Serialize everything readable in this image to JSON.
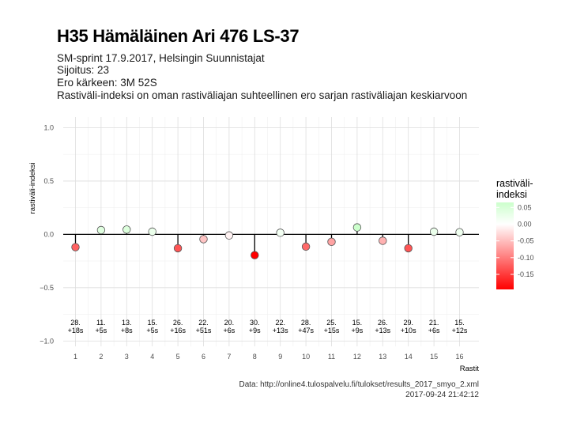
{
  "header": {
    "title": "H35 Hämäläinen Ari 476 LS-37",
    "subtitle_lines": [
      "SM-sprint 17.9.2017, Helsingin Suunnistajat",
      "Sijoitus: 23",
      "Ero kärkeen: 3M 52S",
      "Rastiväli-indeksi on oman rastiväliajan suhteellinen ero sarjan rastiväliajan keskiarvoon"
    ]
  },
  "caption": {
    "source": "Data: http://online4.tulospalvelu.fi/tulokset/results_2017_smyo_2.xml",
    "timestamp": "2017-09-24 21:42:12"
  },
  "chart_data": {
    "type": "scatter",
    "xlabel": "Rastit",
    "ylabel": "rastiväli-indeksi",
    "ylim": [
      -1.05,
      1.1
    ],
    "y_ticks": [
      -1.0,
      -0.5,
      0.0,
      0.5,
      1.0
    ],
    "y_tick_labels": [
      "−1.0",
      "−0.5",
      "0.0",
      "0.5",
      "1.0"
    ],
    "x": [
      1,
      2,
      3,
      4,
      5,
      6,
      7,
      8,
      9,
      10,
      11,
      12,
      13,
      14,
      15,
      16
    ],
    "x_tick_labels": [
      "1",
      "2",
      "3",
      "4",
      "5",
      "6",
      "7",
      "8",
      "9",
      "10",
      "11",
      "12",
      "13",
      "14",
      "15",
      "16"
    ],
    "values": [
      -0.12,
      0.04,
      0.045,
      0.025,
      -0.13,
      -0.045,
      -0.01,
      -0.195,
      0.015,
      -0.115,
      -0.07,
      0.065,
      -0.06,
      -0.13,
      0.025,
      0.02
    ],
    "annotations": [
      [
        "28.",
        "+18s"
      ],
      [
        "11.",
        "+5s"
      ],
      [
        "13.",
        "+8s"
      ],
      [
        "15.",
        "+5s"
      ],
      [
        "26.",
        "+16s"
      ],
      [
        "22.",
        "+51s"
      ],
      [
        "20.",
        "+6s"
      ],
      [
        "30.",
        "+9s"
      ],
      [
        "22.",
        "+13s"
      ],
      [
        "28.",
        "+47s"
      ],
      [
        "25.",
        "+15s"
      ],
      [
        "15.",
        "+9s"
      ],
      [
        "26.",
        "+13s"
      ],
      [
        "29.",
        "+10s"
      ],
      [
        "21.",
        "+6s"
      ],
      [
        "15.",
        "+12s"
      ]
    ],
    "annotation_y": -0.9,
    "grid": true,
    "legend": {
      "title": "rastiväli-\nindeksi",
      "placement": "right",
      "min": -0.195,
      "max": 0.065,
      "ticks": [
        0.05,
        0.0,
        -0.05,
        -0.1,
        -0.15
      ],
      "tick_labels": [
        "0.05",
        "0.00",
        "-0.05",
        "-0.10",
        "-0.15"
      ],
      "color_low": "#ff0000",
      "color_mid": "#ffffff",
      "color_high": "#ccffcc"
    }
  }
}
